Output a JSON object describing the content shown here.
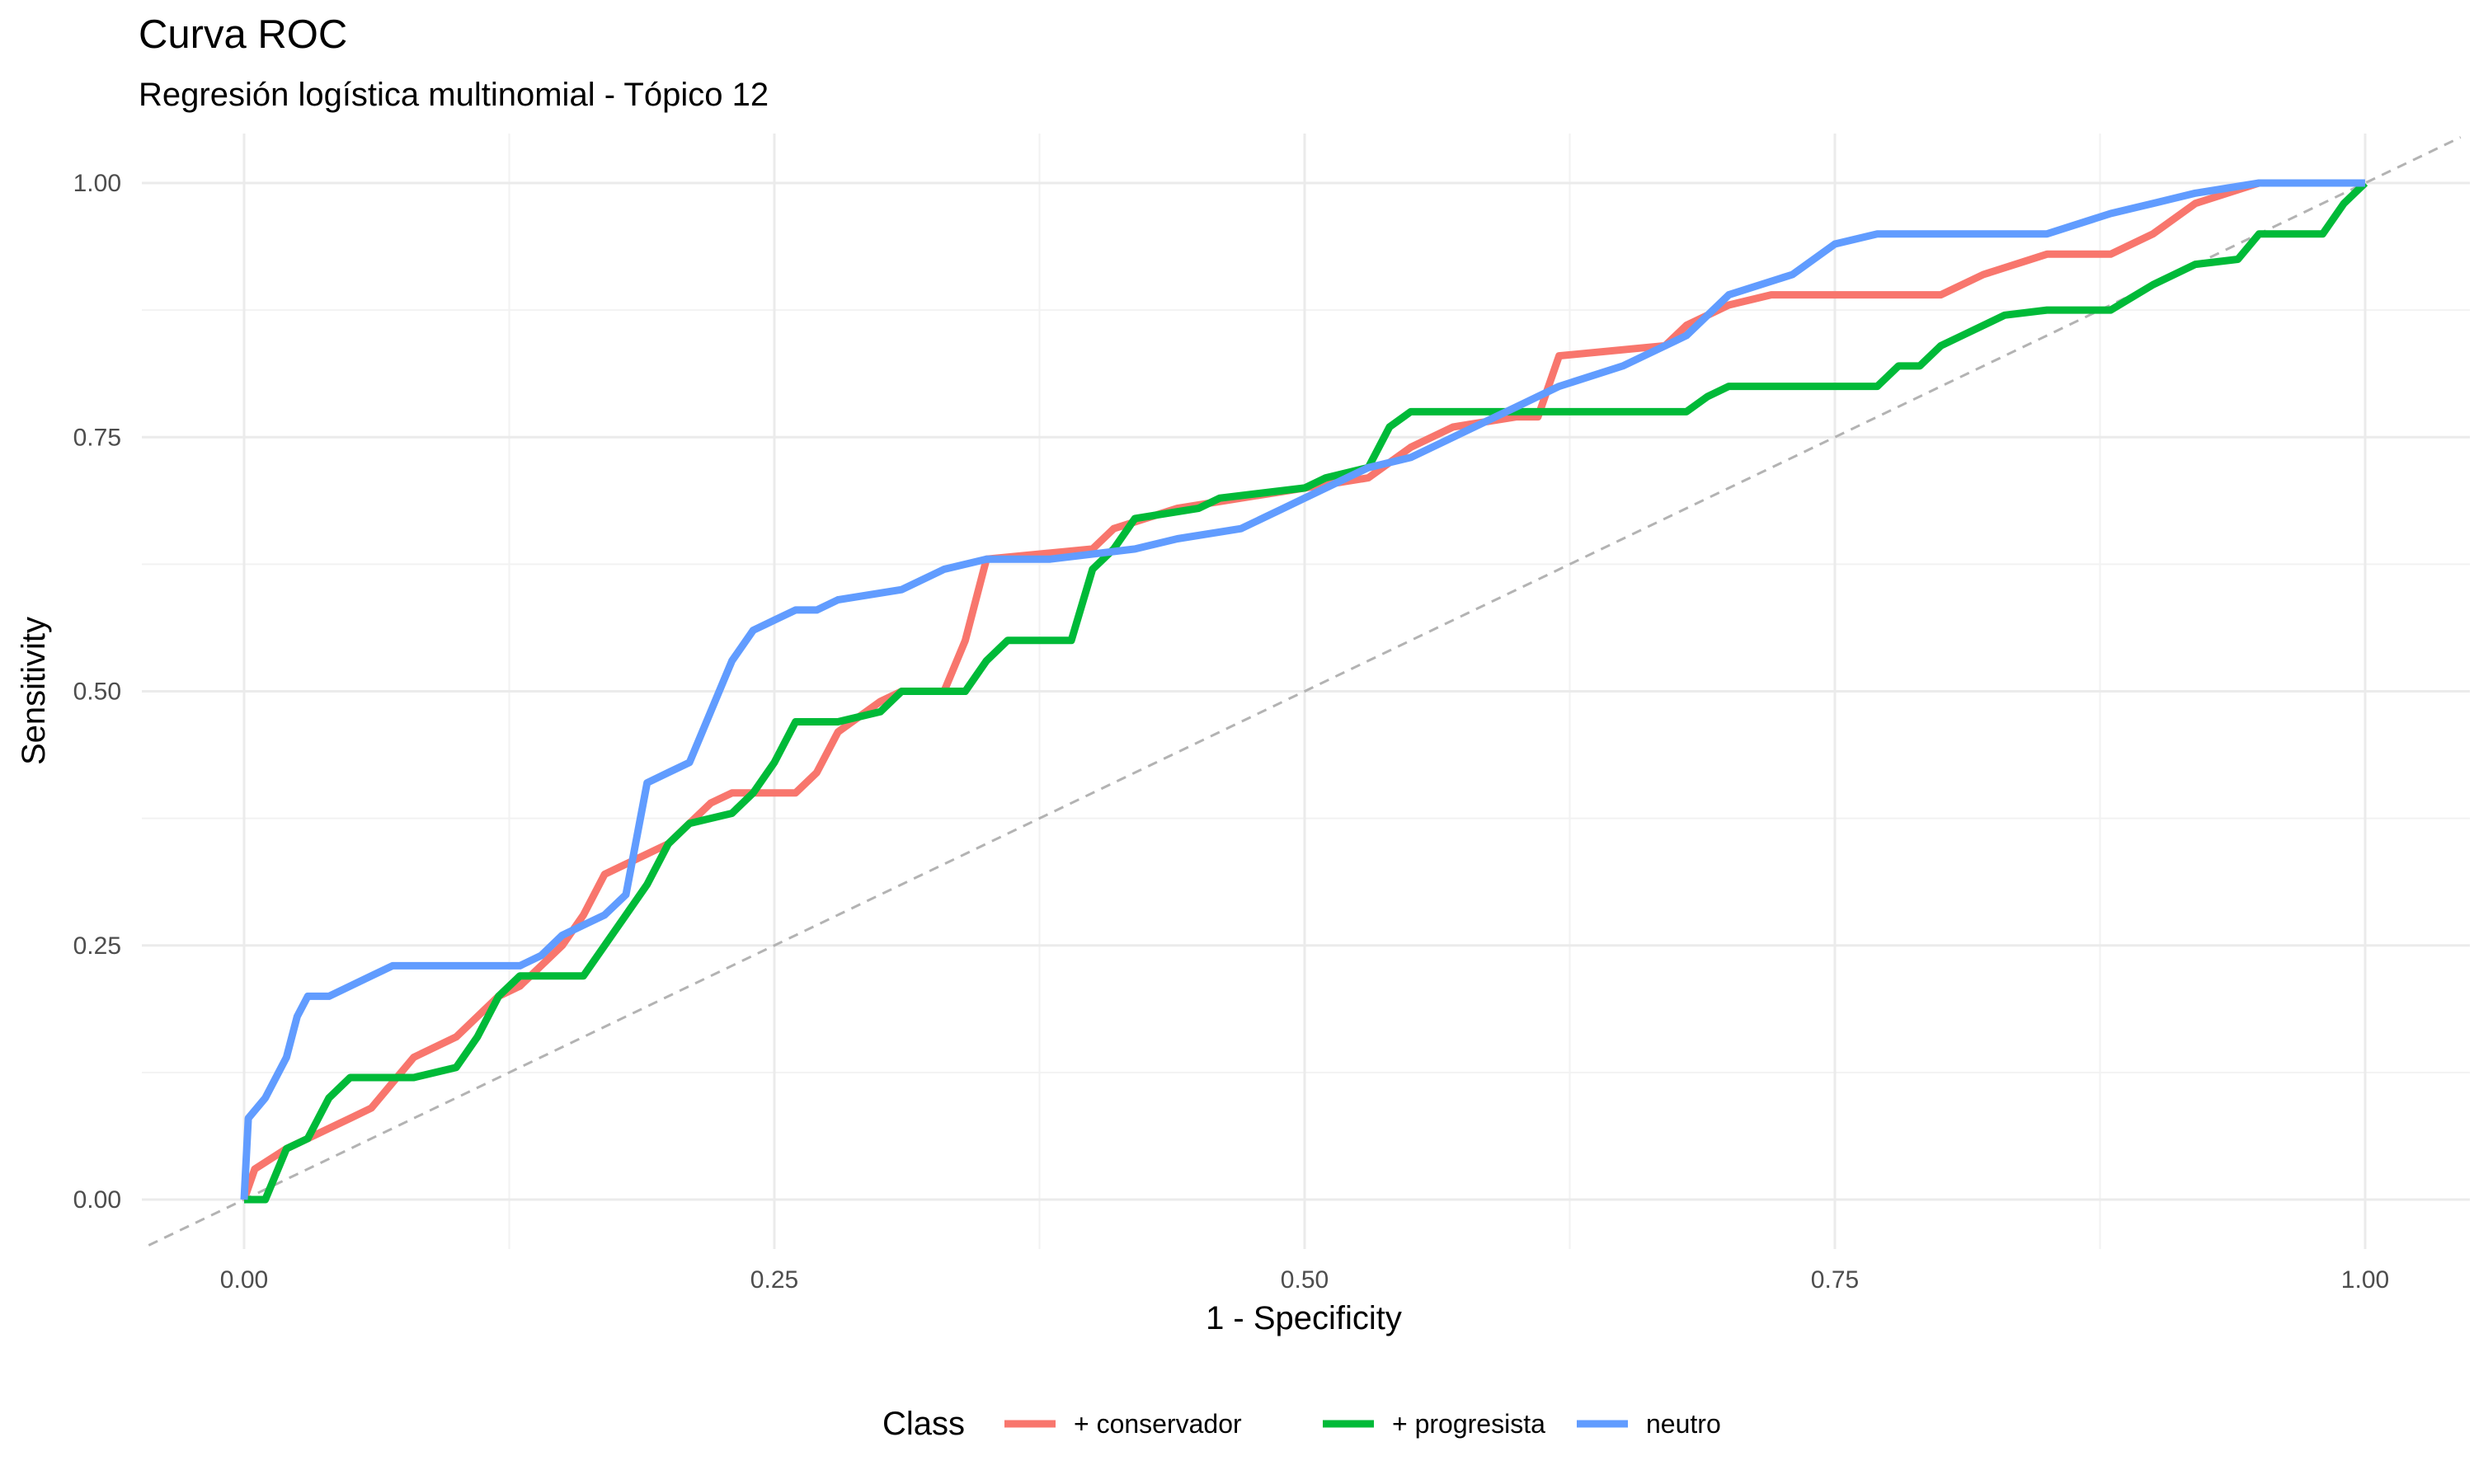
{
  "title": "Curva ROC",
  "subtitle": "Regresión logística multinomial - Tópico 12",
  "chart_data": {
    "type": "line",
    "title": "Curva ROC",
    "subtitle": "Regresión logística multinomial - Tópico 12",
    "xlabel": "1 - Specificity",
    "ylabel": "Sensitivity",
    "xlim": [
      0,
      1
    ],
    "ylim": [
      0,
      1
    ],
    "x_ticks": [
      "0.00",
      "0.25",
      "0.50",
      "0.75",
      "1.00"
    ],
    "y_ticks": [
      "0.00",
      "0.25",
      "0.50",
      "0.75",
      "1.00"
    ],
    "grid": true,
    "reference_line": "dashed diagonal y = x",
    "legend": {
      "title": "Class",
      "position": "bottom"
    },
    "series": [
      {
        "name": "+ conservador",
        "color": "#F8766D",
        "x": [
          0,
          0.005,
          0.02,
          0.03,
          0.04,
          0.05,
          0.06,
          0.08,
          0.1,
          0.12,
          0.13,
          0.15,
          0.16,
          0.17,
          0.18,
          0.19,
          0.2,
          0.21,
          0.22,
          0.23,
          0.26,
          0.27,
          0.28,
          0.3,
          0.31,
          0.33,
          0.34,
          0.35,
          0.4,
          0.41,
          0.44,
          0.47,
          0.5,
          0.53,
          0.55,
          0.57,
          0.6,
          0.61,
          0.62,
          0.67,
          0.68,
          0.7,
          0.72,
          0.8,
          0.82,
          0.85,
          0.88,
          0.9,
          0.92,
          0.95,
          1.0
        ],
        "y": [
          0,
          0.03,
          0.05,
          0.06,
          0.07,
          0.08,
          0.09,
          0.14,
          0.16,
          0.2,
          0.21,
          0.25,
          0.28,
          0.32,
          0.33,
          0.34,
          0.35,
          0.37,
          0.39,
          0.4,
          0.4,
          0.42,
          0.46,
          0.49,
          0.5,
          0.5,
          0.55,
          0.63,
          0.64,
          0.66,
          0.68,
          0.69,
          0.7,
          0.71,
          0.74,
          0.76,
          0.77,
          0.77,
          0.83,
          0.84,
          0.86,
          0.88,
          0.89,
          0.89,
          0.91,
          0.93,
          0.93,
          0.95,
          0.98,
          1.0,
          1.0
        ]
      },
      {
        "name": "+ progresista",
        "color": "#00BA38",
        "x": [
          0,
          0.01,
          0.02,
          0.03,
          0.04,
          0.05,
          0.08,
          0.1,
          0.11,
          0.12,
          0.13,
          0.14,
          0.16,
          0.17,
          0.18,
          0.19,
          0.2,
          0.21,
          0.23,
          0.24,
          0.25,
          0.26,
          0.28,
          0.3,
          0.31,
          0.34,
          0.35,
          0.36,
          0.39,
          0.4,
          0.41,
          0.42,
          0.45,
          0.46,
          0.5,
          0.51,
          0.53,
          0.54,
          0.55,
          0.68,
          0.69,
          0.7,
          0.77,
          0.78,
          0.79,
          0.8,
          0.81,
          0.83,
          0.85,
          0.88,
          0.9,
          0.92,
          0.94,
          0.95,
          0.98,
          0.99,
          1.0
        ],
        "y": [
          0,
          0.0,
          0.05,
          0.06,
          0.1,
          0.12,
          0.12,
          0.13,
          0.16,
          0.2,
          0.22,
          0.22,
          0.22,
          0.25,
          0.28,
          0.31,
          0.35,
          0.37,
          0.38,
          0.4,
          0.43,
          0.47,
          0.47,
          0.48,
          0.5,
          0.5,
          0.53,
          0.55,
          0.55,
          0.62,
          0.64,
          0.67,
          0.68,
          0.69,
          0.7,
          0.71,
          0.72,
          0.76,
          0.775,
          0.775,
          0.79,
          0.8,
          0.8,
          0.82,
          0.82,
          0.84,
          0.85,
          0.87,
          0.875,
          0.875,
          0.9,
          0.92,
          0.925,
          0.95,
          0.95,
          0.98,
          1.0
        ]
      },
      {
        "name": "neutro",
        "color": "#619CFF",
        "x": [
          0,
          0.002,
          0.01,
          0.02,
          0.025,
          0.03,
          0.04,
          0.05,
          0.06,
          0.07,
          0.1,
          0.13,
          0.14,
          0.15,
          0.16,
          0.17,
          0.18,
          0.19,
          0.2,
          0.21,
          0.22,
          0.23,
          0.24,
          0.25,
          0.26,
          0.27,
          0.28,
          0.31,
          0.33,
          0.35,
          0.38,
          0.42,
          0.44,
          0.47,
          0.49,
          0.5,
          0.53,
          0.55,
          0.57,
          0.6,
          0.62,
          0.65,
          0.68,
          0.7,
          0.73,
          0.75,
          0.77,
          0.8,
          0.85,
          0.88,
          0.9,
          0.92,
          0.95,
          1.0
        ],
        "y": [
          0,
          0.08,
          0.1,
          0.14,
          0.18,
          0.2,
          0.2,
          0.21,
          0.22,
          0.23,
          0.23,
          0.23,
          0.24,
          0.26,
          0.27,
          0.28,
          0.3,
          0.41,
          0.42,
          0.43,
          0.48,
          0.53,
          0.56,
          0.57,
          0.58,
          0.58,
          0.59,
          0.6,
          0.62,
          0.63,
          0.63,
          0.64,
          0.65,
          0.66,
          0.68,
          0.69,
          0.72,
          0.73,
          0.75,
          0.78,
          0.8,
          0.82,
          0.85,
          0.89,
          0.91,
          0.94,
          0.95,
          0.95,
          0.95,
          0.97,
          0.98,
          0.99,
          1.0,
          1.0
        ]
      }
    ]
  }
}
